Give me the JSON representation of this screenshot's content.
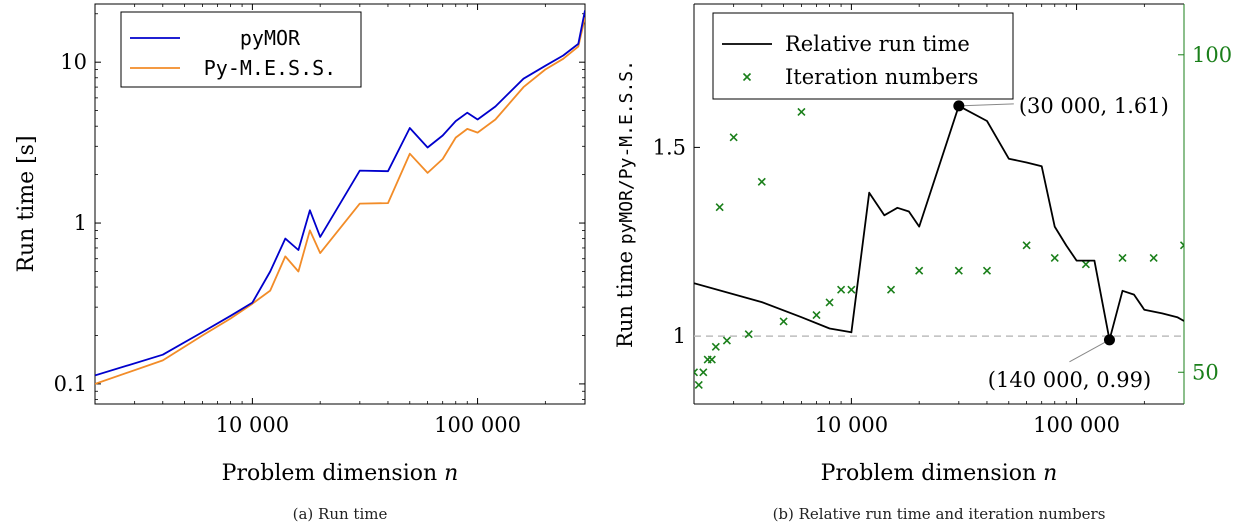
{
  "chart_data": [
    {
      "type": "line",
      "caption": "(a)  Run time",
      "xlabel": "Problem dimension",
      "xlabel_var": "n",
      "ylabel": "Run time [s]",
      "xscale": "log",
      "yscale": "log",
      "xlim": [
        2000,
        300000
      ],
      "ylim": [
        0.075,
        23
      ],
      "xticks": [
        10000,
        100000
      ],
      "xtick_labels": [
        "10 000",
        "100 000"
      ],
      "yticks": [
        0.1,
        1,
        10
      ],
      "ytick_labels": [
        "0.1",
        "1",
        "10"
      ],
      "legend_position": "top-left",
      "x": [
        2000,
        4000,
        6000,
        8000,
        10000,
        12000,
        14000,
        16000,
        18000,
        20000,
        30000,
        40000,
        50000,
        60000,
        70000,
        80000,
        90000,
        100000,
        120000,
        160000,
        200000,
        240000,
        280000,
        300000
      ],
      "series": [
        {
          "name": "pyMOR",
          "color": "#0000cc",
          "values": [
            0.113,
            0.152,
            0.21,
            0.265,
            0.32,
            0.5,
            0.8,
            0.68,
            1.2,
            0.82,
            2.12,
            2.1,
            3.9,
            2.95,
            3.5,
            4.3,
            4.85,
            4.4,
            5.3,
            7.9,
            9.5,
            11.0,
            13.0,
            21.0
          ]
        },
        {
          "name": "Py-M.E.S.S.",
          "color": "#f28c28",
          "values": [
            0.1,
            0.14,
            0.2,
            0.255,
            0.315,
            0.38,
            0.62,
            0.5,
            0.9,
            0.65,
            1.32,
            1.33,
            2.7,
            2.05,
            2.5,
            3.4,
            3.85,
            3.65,
            4.4,
            7.0,
            9.0,
            10.5,
            12.5,
            19.0
          ]
        }
      ]
    },
    {
      "type": "line",
      "caption": "(b)  Relative run time and iteration numbers",
      "xlabel": "Problem dimension",
      "xlabel_var": "n",
      "ylabel_prefix": "Run time ",
      "ylabel_code": "pyMOR/Py-M.E.S.S.",
      "xscale": "log",
      "xlim": [
        2000,
        300000
      ],
      "ylim": [
        0.82,
        1.88
      ],
      "xticks": [
        10000,
        100000
      ],
      "xtick_labels": [
        "10 000",
        "100 000"
      ],
      "yticks": [
        1,
        1.5
      ],
      "ytick_labels": [
        "1",
        "1.5"
      ],
      "y2lim": [
        45,
        108
      ],
      "y2ticks": [
        50,
        100
      ],
      "y2tick_labels": [
        "50",
        "100"
      ],
      "y2_color": "#1a7f1a",
      "reference_line_y": 1,
      "legend_position": "top-left",
      "series": [
        {
          "name": "Relative run time",
          "color": "#000000",
          "axis": "left",
          "x": [
            2000,
            4000,
            6000,
            8000,
            10000,
            12000,
            14000,
            16000,
            18000,
            20000,
            30000,
            40000,
            50000,
            60000,
            70000,
            80000,
            90000,
            100000,
            120000,
            140000,
            160000,
            180000,
            200000,
            240000,
            280000,
            300000
          ],
          "values": [
            1.14,
            1.09,
            1.05,
            1.02,
            1.01,
            1.38,
            1.32,
            1.34,
            1.33,
            1.29,
            1.61,
            1.57,
            1.47,
            1.46,
            1.45,
            1.29,
            1.24,
            1.2,
            1.2,
            0.99,
            1.12,
            1.11,
            1.07,
            1.06,
            1.05,
            1.04
          ]
        },
        {
          "name": "Iteration numbers",
          "color": "#1a7f1a",
          "axis": "right",
          "marker": "x",
          "x": [
            2000,
            2100,
            2200,
            2300,
            2400,
            2500,
            2600,
            2800,
            3000,
            3500,
            4000,
            5000,
            6000,
            7000,
            8000,
            9000,
            10000,
            15000,
            20000,
            30000,
            40000,
            60000,
            80000,
            110000,
            160000,
            220000,
            300000
          ],
          "values": [
            50,
            48,
            50,
            52,
            52,
            54,
            76,
            55,
            87,
            56,
            80,
            58,
            91,
            59,
            61,
            63,
            63,
            63,
            66,
            66,
            66,
            70,
            68,
            67,
            68,
            68,
            70
          ]
        }
      ],
      "annotations": [
        {
          "label": "(30 000, 1.61)",
          "x": 30000,
          "y": 1.61
        },
        {
          "label": "(140 000, 0.99)",
          "x": 140000,
          "y": 0.99
        }
      ]
    }
  ]
}
